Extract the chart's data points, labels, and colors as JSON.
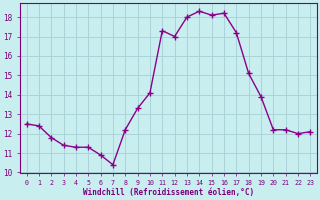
{
  "x": [
    0,
    1,
    2,
    3,
    4,
    5,
    6,
    7,
    8,
    9,
    10,
    11,
    12,
    13,
    14,
    15,
    16,
    17,
    18,
    19,
    20,
    21,
    22,
    23
  ],
  "y": [
    12.5,
    12.4,
    11.8,
    11.4,
    11.3,
    11.3,
    10.9,
    10.4,
    12.2,
    13.3,
    14.1,
    17.3,
    17.0,
    18.0,
    18.3,
    18.1,
    18.2,
    17.2,
    15.1,
    13.9,
    12.2,
    12.2,
    12.0,
    12.1
  ],
  "line_color": "#8b008b",
  "marker": "+",
  "marker_size": 4,
  "line_width": 1.0,
  "xlabel": "Windchill (Refroidissement éolien,°C)",
  "xlim": [
    -0.5,
    23.5
  ],
  "ylim": [
    10,
    18.7
  ],
  "yticks": [
    10,
    11,
    12,
    13,
    14,
    15,
    16,
    17,
    18
  ],
  "xticks": [
    0,
    1,
    2,
    3,
    4,
    5,
    6,
    7,
    8,
    9,
    10,
    11,
    12,
    13,
    14,
    15,
    16,
    17,
    18,
    19,
    20,
    21,
    22,
    23
  ],
  "bg_color": "#c8eef0",
  "grid_color": "#aad4d8",
  "tick_color": "#7b007b",
  "label_color": "#7b007b"
}
